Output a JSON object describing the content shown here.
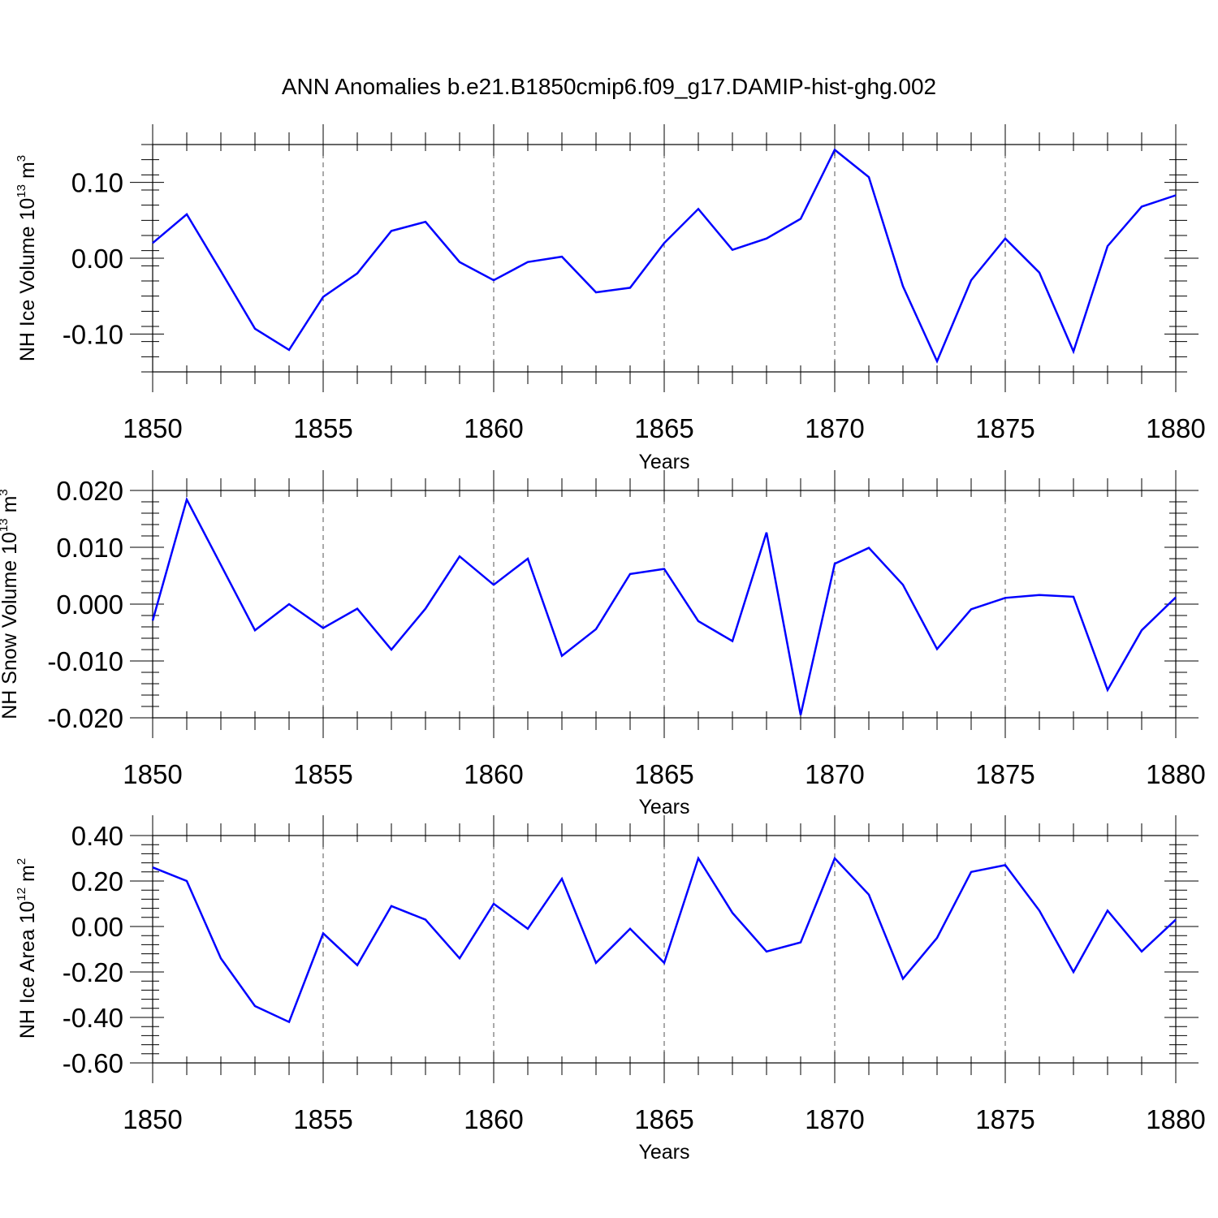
{
  "title": "ANN Anomalies b.e21.B1850cmip6.f09_g17.DAMIP-hist-ghg.002",
  "colors": {
    "series": "#0000ff",
    "grid": "#555555",
    "axes": "#000000"
  },
  "chart_data": [
    {
      "type": "line",
      "ylabel": "NH Ice Volume 10",
      "ylabel_sup1": "13",
      "ylabel_mid": " m",
      "ylabel_sup2": "3",
      "xlabel": "Years",
      "xlim": [
        1850,
        1880
      ],
      "ylim": [
        -0.15,
        0.15
      ],
      "yticks": [
        -0.1,
        0.0,
        0.1
      ],
      "ytick_labels": [
        "-0.10",
        "0.00",
        "0.10"
      ],
      "yminor_step": 0.02,
      "xticks": [
        1850,
        1855,
        1860,
        1865,
        1870,
        1875,
        1880
      ],
      "xtick_labels": [
        "1850",
        "1855",
        "1860",
        "1865",
        "1870",
        "1875",
        "1880"
      ],
      "grid": "x-major-dashed",
      "series": [
        {
          "x": [
            1850,
            1851,
            1852,
            1853,
            1854,
            1855,
            1856,
            1857,
            1858,
            1859,
            1860,
            1861,
            1862,
            1863,
            1864,
            1865,
            1866,
            1867,
            1868,
            1869,
            1870,
            1871,
            1872,
            1873,
            1874,
            1875,
            1876,
            1877,
            1878,
            1879,
            1880
          ],
          "values": [
            0.02,
            0.058,
            -0.017,
            -0.093,
            -0.121,
            -0.051,
            -0.02,
            0.036,
            0.048,
            -0.005,
            -0.029,
            -0.005,
            0.002,
            -0.045,
            -0.039,
            0.02,
            0.065,
            0.011,
            0.026,
            0.052,
            0.143,
            0.107,
            -0.037,
            -0.136,
            -0.029,
            0.026,
            -0.019,
            -0.123,
            0.016,
            0.068,
            0.083
          ]
        }
      ]
    },
    {
      "type": "line",
      "ylabel": "NH Snow Volume 10",
      "ylabel_sup1": "13",
      "ylabel_mid": " m",
      "ylabel_sup2": "3",
      "xlabel": "Years",
      "xlim": [
        1850,
        1880
      ],
      "ylim": [
        -0.02,
        0.02
      ],
      "yticks": [
        -0.02,
        -0.01,
        0.0,
        0.01,
        0.02
      ],
      "ytick_labels": [
        "-0.020",
        "-0.010",
        "0.000",
        "0.010",
        "0.020"
      ],
      "yminor_step": 0.002,
      "xticks": [
        1850,
        1855,
        1860,
        1865,
        1870,
        1875,
        1880
      ],
      "xtick_labels": [
        "1850",
        "1855",
        "1860",
        "1865",
        "1870",
        "1875",
        "1880"
      ],
      "grid": "x-major-dashed",
      "series": [
        {
          "x": [
            1850,
            1851,
            1852,
            1853,
            1854,
            1855,
            1856,
            1857,
            1858,
            1859,
            1860,
            1861,
            1862,
            1863,
            1864,
            1865,
            1866,
            1867,
            1868,
            1869,
            1870,
            1871,
            1872,
            1873,
            1874,
            1875,
            1876,
            1877,
            1878,
            1879,
            1880
          ],
          "values": [
            -0.0029,
            0.0184,
            0.0069,
            -0.0046,
            0.0,
            -0.0042,
            -0.0008,
            -0.008,
            -0.0008,
            0.0084,
            0.0034,
            0.008,
            -0.0091,
            -0.0044,
            0.0053,
            0.0062,
            -0.003,
            -0.0065,
            0.0126,
            -0.0195,
            0.0071,
            0.0099,
            0.0034,
            -0.0079,
            -0.0009,
            0.0011,
            0.0016,
            0.0013,
            -0.0151,
            -0.0046,
            0.0012
          ]
        }
      ]
    },
    {
      "type": "line",
      "ylabel": "NH Ice Area 10",
      "ylabel_sup1": "12",
      "ylabel_mid": " m",
      "ylabel_sup2": "2",
      "xlabel": "Years",
      "xlim": [
        1850,
        1880
      ],
      "ylim": [
        -0.6,
        0.4
      ],
      "yticks": [
        -0.6,
        -0.4,
        -0.2,
        0.0,
        0.2,
        0.4
      ],
      "ytick_labels": [
        "-0.60",
        "-0.40",
        "-0.20",
        "0.00",
        "0.20",
        "0.40"
      ],
      "yminor_step": 0.04,
      "xticks": [
        1850,
        1855,
        1860,
        1865,
        1870,
        1875,
        1880
      ],
      "xtick_labels": [
        "1850",
        "1855",
        "1860",
        "1865",
        "1870",
        "1875",
        "1880"
      ],
      "grid": "x-major-dashed",
      "series": [
        {
          "x": [
            1850,
            1851,
            1852,
            1853,
            1854,
            1855,
            1856,
            1857,
            1858,
            1859,
            1860,
            1861,
            1862,
            1863,
            1864,
            1865,
            1866,
            1867,
            1868,
            1869,
            1870,
            1871,
            1872,
            1873,
            1874,
            1875,
            1876,
            1877,
            1878,
            1879,
            1880
          ],
          "values": [
            0.26,
            0.2,
            -0.14,
            -0.35,
            -0.42,
            -0.03,
            -0.17,
            0.09,
            0.03,
            -0.14,
            0.1,
            -0.01,
            0.21,
            -0.16,
            -0.01,
            -0.16,
            0.3,
            0.06,
            -0.11,
            -0.07,
            0.3,
            0.14,
            -0.23,
            -0.05,
            0.24,
            0.27,
            0.07,
            -0.2,
            0.07,
            -0.11,
            0.03
          ]
        }
      ]
    }
  ]
}
